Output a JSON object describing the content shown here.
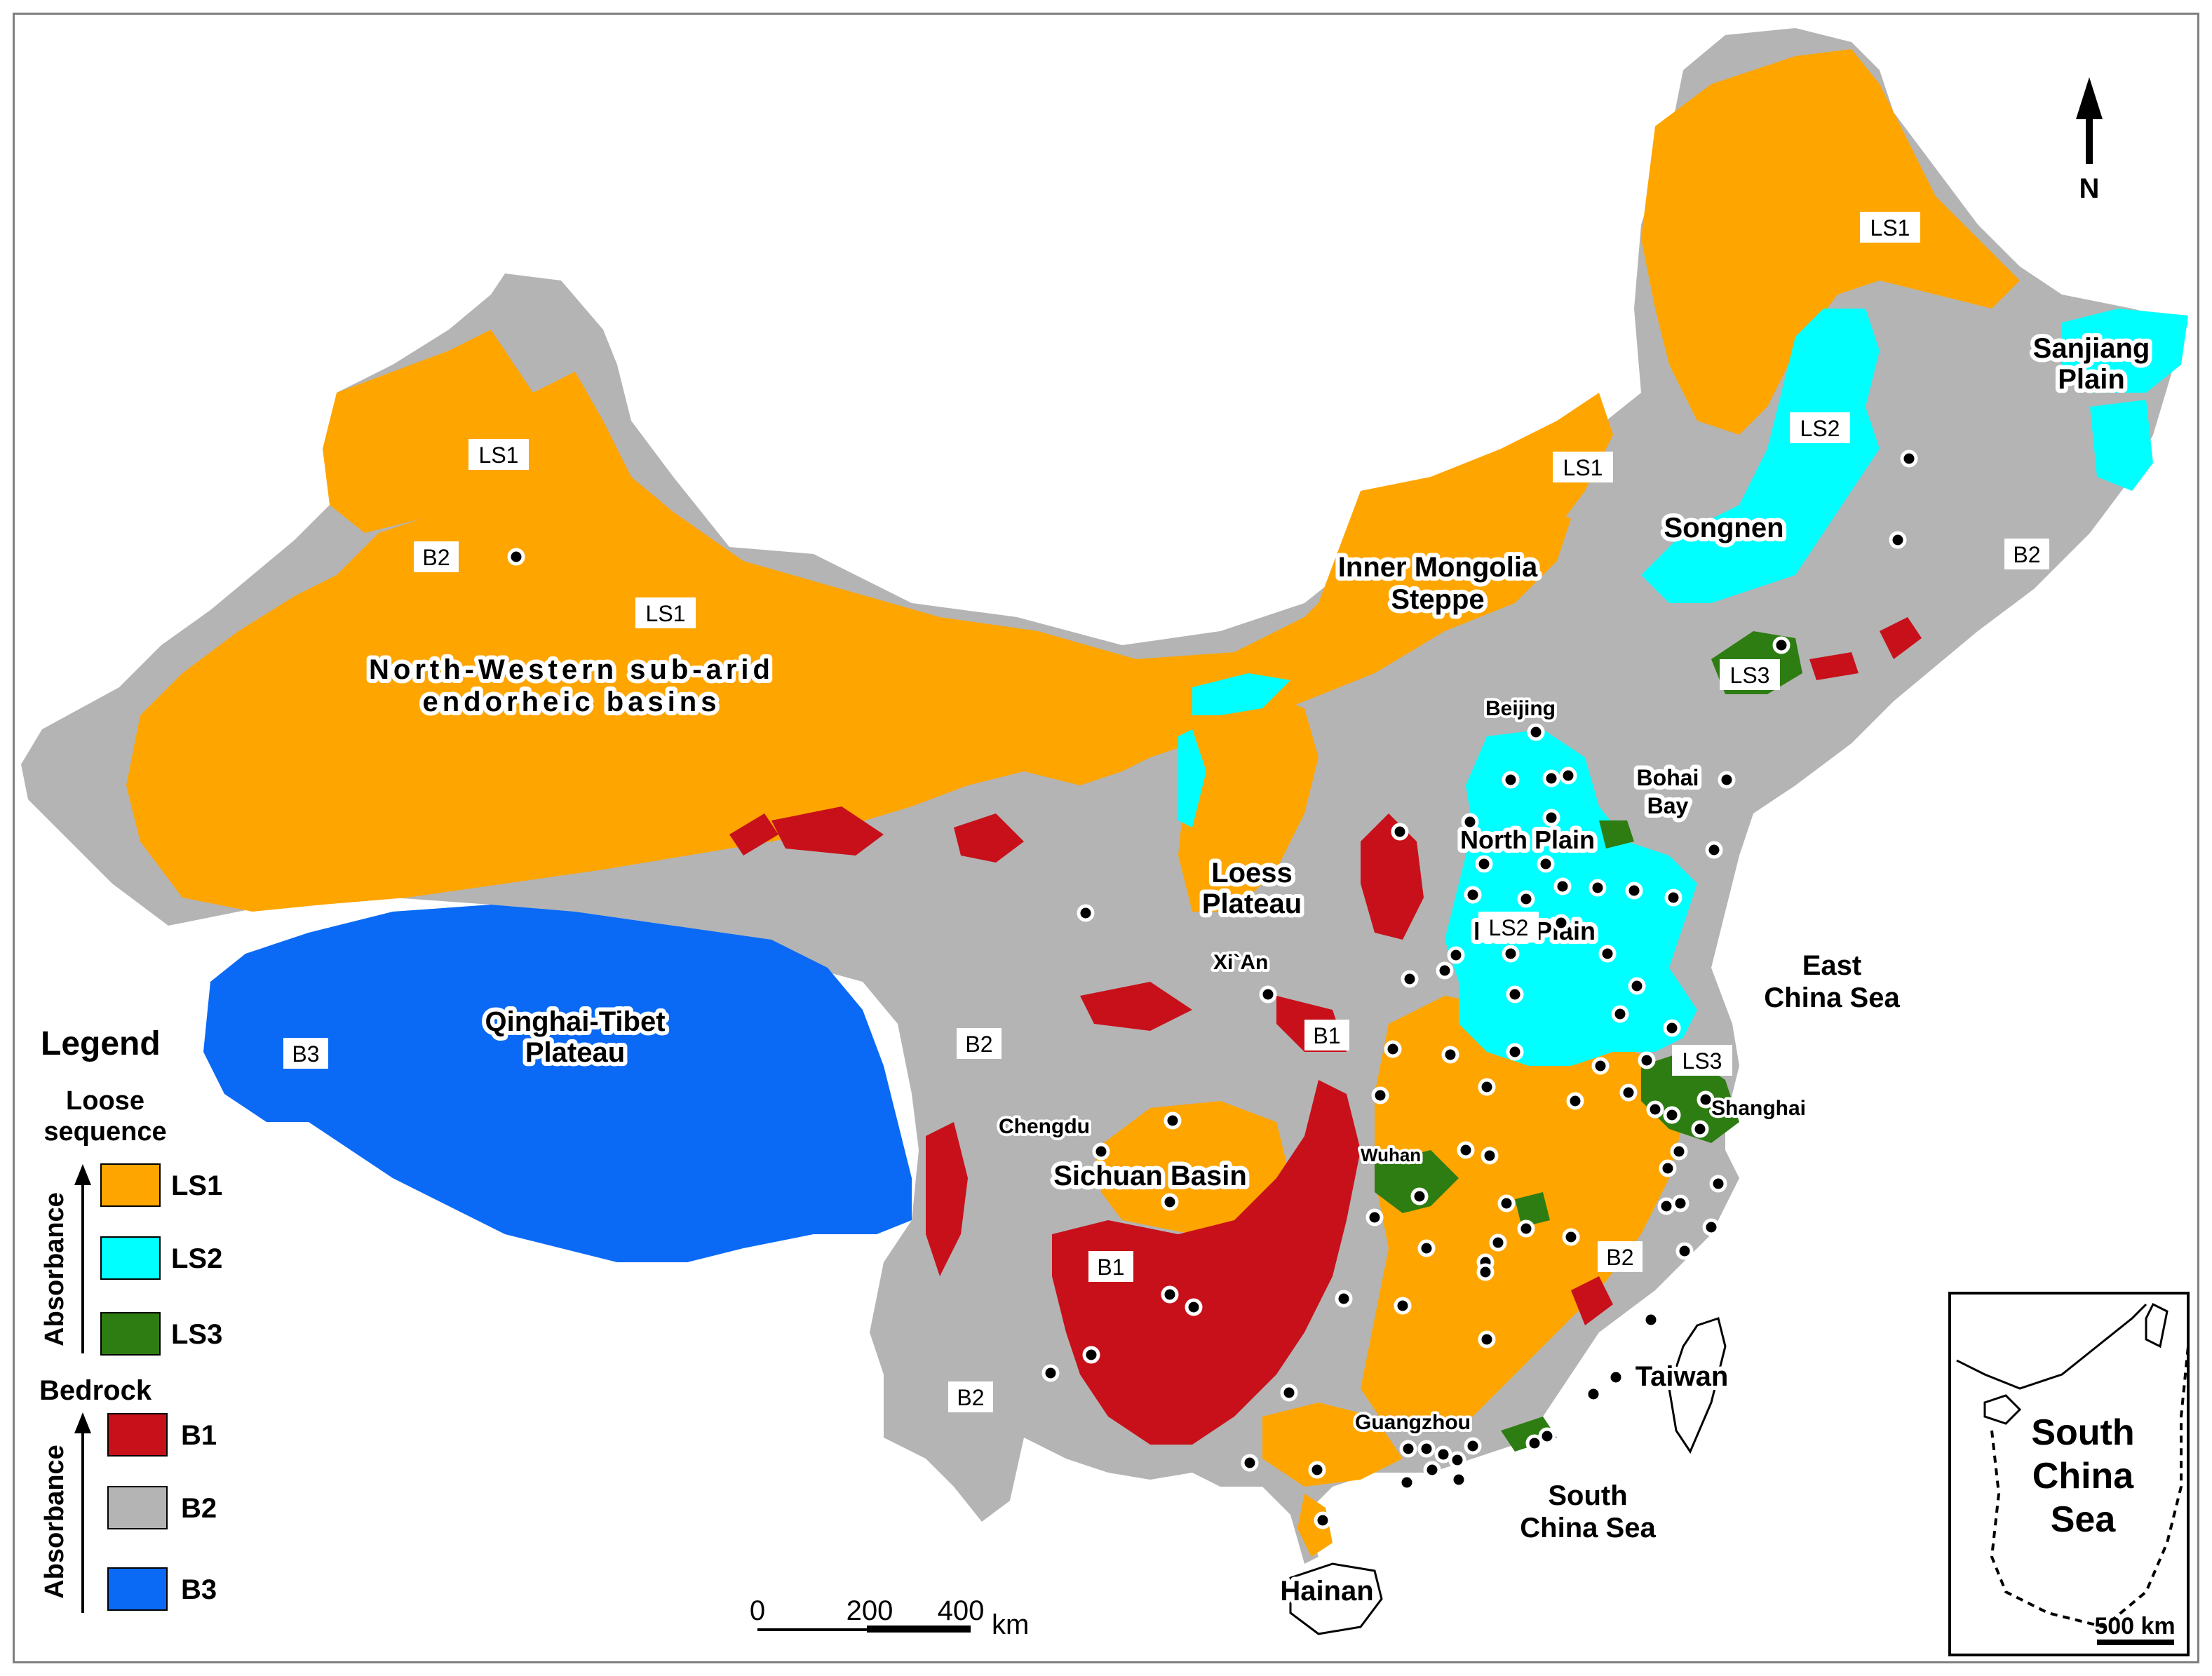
{
  "colors": {
    "LS1": "#FFA500",
    "LS2": "#00FFFF",
    "LS3": "#2E7D12",
    "B1": "#C8101A",
    "B2": "#B4B4B4",
    "B3": "#0A6AF5"
  },
  "regions": {
    "northwest": "North-Western sub-arid\nendorheic basins",
    "qinghai_tibet": "Qinghai-Tibet\nPlateau",
    "inner_mongolia": "Inner Mongolia\nSteppe",
    "songnen": "Songnen",
    "sanjiang": "Sanjiang\nPlain",
    "loess": "Loess\nPlateau",
    "north_plain": "North Plain",
    "huai_plain": "Huai Plain",
    "sichuan": "Sichuan Basin",
    "bohai": "Bohai\nBay",
    "east_china_sea": "East\nChina Sea",
    "south_china_sea": "South\nChina Sea",
    "taiwan": "Taiwan",
    "hainan": "Hainan"
  },
  "zone_labels": {
    "ls1_nw": "LS1",
    "b2_nw": "B2",
    "ls1_nw2": "LS1",
    "ls1_mongolia": "LS1",
    "ls1_ne": "LS1",
    "ls2_songnen": "LS2",
    "b2_ne": "B2",
    "ls3_ne": "LS3",
    "b3_tibet": "B3",
    "b2_central": "B2",
    "b1_central": "B1",
    "ls2_plain": "LS2",
    "ls3_shanghai": "LS3",
    "b1_south": "B1",
    "b2_southwest": "B2",
    "b2_southeast": "B2"
  },
  "cities": {
    "beijing": "Beijing",
    "xian": "Xi`An",
    "chengdu": "Chengdu",
    "wuhan": "Wuhan",
    "shanghai": "Shanghai",
    "guangzhou": "Guangzhou"
  },
  "north_arrow": "N",
  "scale_bar": {
    "ticks": [
      "0",
      "200",
      "400"
    ],
    "unit": "km"
  },
  "inset": {
    "title": "South\nChina\nSea",
    "scale": "500 km"
  },
  "legend": {
    "title": "Legend",
    "loose_heading": "Loose\nsequence",
    "bedrock_heading": "Bedrock",
    "axis_label": "Absorbance",
    "loose_items": [
      {
        "code": "LS1",
        "color": "#FFA500"
      },
      {
        "code": "LS2",
        "color": "#00FFFF"
      },
      {
        "code": "LS3",
        "color": "#2E7D12"
      }
    ],
    "bedrock_items": [
      {
        "code": "B1",
        "color": "#C8101A"
      },
      {
        "code": "B2",
        "color": "#B4B4B4"
      },
      {
        "code": "B3",
        "color": "#0A6AF5"
      }
    ]
  }
}
